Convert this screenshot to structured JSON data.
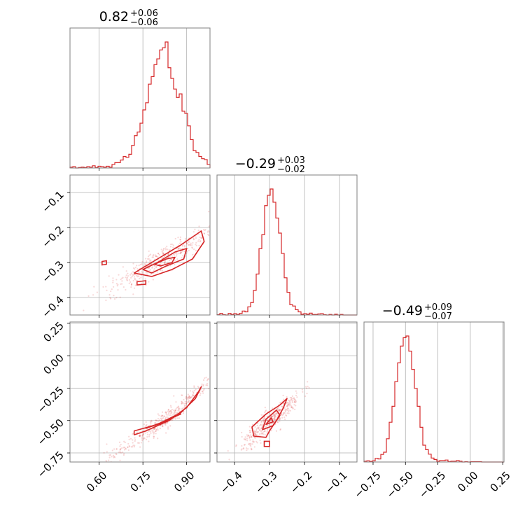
{
  "chart_data": {
    "type": "corner",
    "color": "#d62728",
    "parameters": [
      {
        "index": 0,
        "range": [
          0.5,
          0.98
        ],
        "ticks": [
          0.6,
          0.75,
          0.9
        ],
        "tick_labels": [
          "0.60",
          "0.75",
          "0.90"
        ],
        "median": "0.82",
        "plus": "+0.06",
        "minus": "−0.06",
        "hist_center": 0.82,
        "hist_sigma": 0.055,
        "hist_peak": 0.82
      },
      {
        "index": 1,
        "range": [
          -0.45,
          -0.05
        ],
        "ticks": [
          -0.4,
          -0.3,
          -0.2,
          -0.1
        ],
        "tick_labels": [
          "−0.4",
          "−0.3",
          "−0.2",
          "−0.1"
        ],
        "median": "−0.29",
        "plus": "+0.03",
        "minus": "−0.02",
        "hist_center": -0.295,
        "hist_sigma": 0.025,
        "hist_peak": -0.3
      },
      {
        "index": 2,
        "range": [
          -0.82,
          0.26
        ],
        "ticks": [
          -0.75,
          -0.5,
          -0.25,
          0.0,
          0.25
        ],
        "tick_labels": [
          "−0.75",
          "−0.50",
          "−0.25",
          "0.00",
          "0.25"
        ],
        "median": "−0.49",
        "plus": "+0.09",
        "minus": "−0.07",
        "hist_center": -0.5,
        "hist_sigma": 0.07,
        "hist_peak": -0.5
      }
    ],
    "pairs": [
      {
        "row": 1,
        "col": 0,
        "center": [
          0.82,
          -0.29
        ],
        "spread": [
          0.07,
          0.03
        ],
        "slope": 0.45,
        "contours": [
          [
            [
              0.72,
              -0.33
            ],
            [
              0.76,
              -0.31
            ],
            [
              0.82,
              -0.28
            ],
            [
              0.88,
              -0.25
            ],
            [
              0.95,
              -0.21
            ],
            [
              0.96,
              -0.24
            ],
            [
              0.92,
              -0.29
            ],
            [
              0.85,
              -0.32
            ],
            [
              0.78,
              -0.34
            ]
          ],
          [
            [
              0.75,
              -0.32
            ],
            [
              0.8,
              -0.3
            ],
            [
              0.86,
              -0.27
            ],
            [
              0.9,
              -0.26
            ],
            [
              0.89,
              -0.29
            ],
            [
              0.83,
              -0.31
            ],
            [
              0.78,
              -0.33
            ]
          ],
          [
            [
              0.79,
              -0.305
            ],
            [
              0.83,
              -0.29
            ],
            [
              0.86,
              -0.285
            ],
            [
              0.85,
              -0.3
            ],
            [
              0.81,
              -0.31
            ]
          ]
        ],
        "outlier_contours": [
          [
            [
              0.61,
              -0.297
            ],
            [
              0.625,
              -0.295
            ],
            [
              0.625,
              -0.305
            ],
            [
              0.61,
              -0.307
            ]
          ],
          [
            [
              0.73,
              -0.355
            ],
            [
              0.76,
              -0.352
            ],
            [
              0.76,
              -0.362
            ],
            [
              0.73,
              -0.364
            ]
          ]
        ]
      },
      {
        "row": 2,
        "col": 0,
        "center": [
          0.82,
          -0.5
        ],
        "spread": [
          0.07,
          0.06
        ],
        "slope": 1.6,
        "contours": [
          [
            [
              0.72,
              -0.58
            ],
            [
              0.8,
              -0.53
            ],
            [
              0.88,
              -0.44
            ],
            [
              0.93,
              -0.33
            ],
            [
              0.95,
              -0.24
            ],
            [
              0.94,
              -0.28
            ],
            [
              0.9,
              -0.4
            ],
            [
              0.84,
              -0.5
            ],
            [
              0.76,
              -0.58
            ],
            [
              0.72,
              -0.61
            ]
          ],
          [
            [
              0.76,
              -0.56
            ],
            [
              0.82,
              -0.51
            ],
            [
              0.88,
              -0.45
            ],
            [
              0.86,
              -0.47
            ],
            [
              0.8,
              -0.53
            ]
          ],
          [
            [
              0.8,
              -0.53
            ],
            [
              0.84,
              -0.5
            ],
            [
              0.83,
              -0.51
            ]
          ]
        ],
        "outlier_contours": []
      },
      {
        "row": 2,
        "col": 1,
        "center": [
          -0.295,
          -0.5
        ],
        "spread": [
          0.03,
          0.07
        ],
        "slope": 2.2,
        "contours": [
          [
            [
              -0.345,
              -0.62
            ],
            [
              -0.35,
              -0.55
            ],
            [
              -0.31,
              -0.45
            ],
            [
              -0.27,
              -0.38
            ],
            [
              -0.25,
              -0.33
            ],
            [
              -0.26,
              -0.4
            ],
            [
              -0.28,
              -0.5
            ],
            [
              -0.3,
              -0.58
            ],
            [
              -0.31,
              -0.63
            ]
          ],
          [
            [
              -0.32,
              -0.57
            ],
            [
              -0.31,
              -0.49
            ],
            [
              -0.28,
              -0.42
            ],
            [
              -0.27,
              -0.46
            ],
            [
              -0.29,
              -0.54
            ]
          ],
          [
            [
              -0.31,
              -0.53
            ],
            [
              -0.295,
              -0.48
            ],
            [
              -0.29,
              -0.51
            ]
          ]
        ],
        "outlier_contours": [
          [
            [
              -0.315,
              -0.66
            ],
            [
              -0.3,
              -0.66
            ],
            [
              -0.3,
              -0.7
            ],
            [
              -0.315,
              -0.7
            ]
          ]
        ]
      }
    ]
  }
}
